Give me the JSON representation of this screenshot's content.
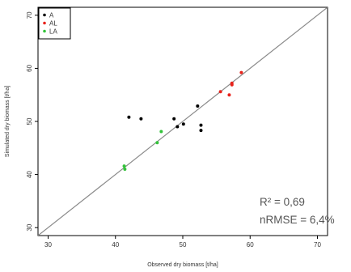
{
  "chart_data": {
    "type": "scatter",
    "xlabel": "Observed dry biomass [t/ha]",
    "ylabel": "Simulated dry biomass [t/ha]",
    "xlim": [
      28.5,
      71.5
    ],
    "ylim": [
      28.5,
      71.5
    ],
    "x_ticks": [
      "30",
      "40",
      "50",
      "60",
      "70"
    ],
    "y_ticks": [
      "30",
      "40",
      "50",
      "60",
      "70"
    ],
    "grid": false,
    "legend_position": "top-left",
    "reference_line": "1:1",
    "series": [
      {
        "name": "A",
        "color": "#000000",
        "points": [
          {
            "x": 42.0,
            "y": 50.8
          },
          {
            "x": 43.8,
            "y": 50.5
          },
          {
            "x": 48.7,
            "y": 50.5
          },
          {
            "x": 49.2,
            "y": 49.0
          },
          {
            "x": 50.1,
            "y": 49.5
          },
          {
            "x": 52.2,
            "y": 52.9
          },
          {
            "x": 52.7,
            "y": 49.3
          },
          {
            "x": 52.7,
            "y": 48.3
          }
        ]
      },
      {
        "name": "AL",
        "color": "#e8231c",
        "points": [
          {
            "x": 55.6,
            "y": 55.6
          },
          {
            "x": 56.9,
            "y": 55.0
          },
          {
            "x": 57.3,
            "y": 56.9
          },
          {
            "x": 57.3,
            "y": 57.2
          },
          {
            "x": 58.7,
            "y": 59.2
          }
        ]
      },
      {
        "name": "LA",
        "color": "#33c33a",
        "points": [
          {
            "x": 41.3,
            "y": 41.6
          },
          {
            "x": 41.4,
            "y": 41.0
          },
          {
            "x": 46.2,
            "y": 46.0
          },
          {
            "x": 46.8,
            "y": 48.1
          }
        ]
      }
    ],
    "annotations": [
      "R² = 0,69",
      "nRMSE = 6,4%"
    ]
  }
}
